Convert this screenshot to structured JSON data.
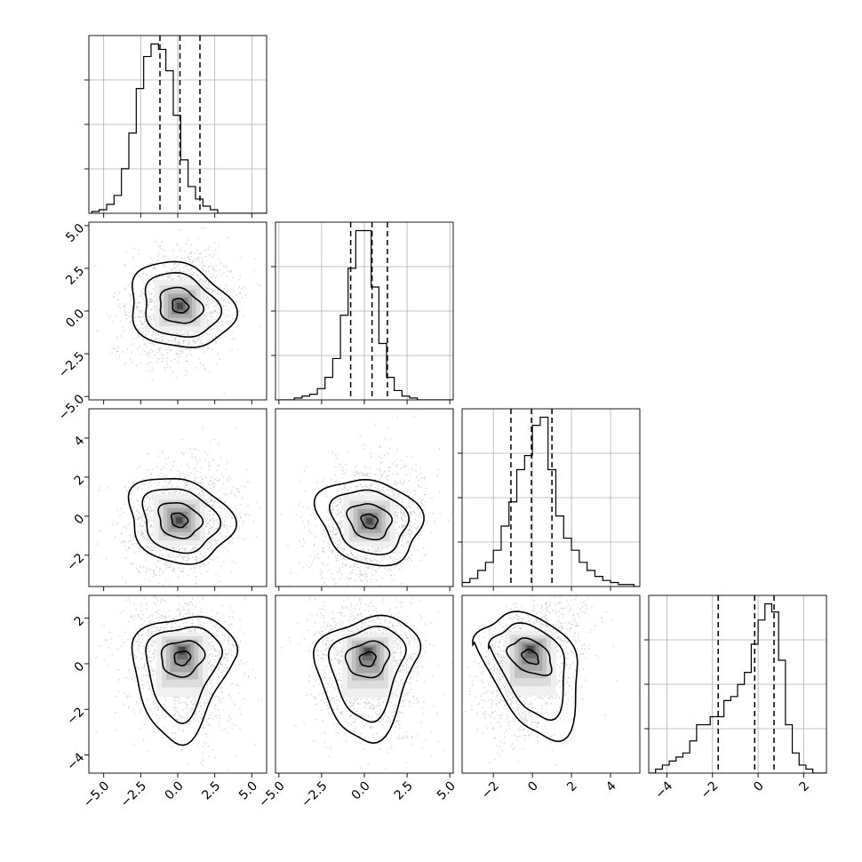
{
  "chart_data": {
    "type": "corner",
    "parameters": [
      {
        "range": [
          -6,
          6
        ],
        "ticks": [
          -5.0,
          -2.5,
          0.0,
          2.5,
          5.0
        ],
        "tick_labels": [
          "−5.0",
          "−2.5",
          "0.0",
          "2.5",
          "5.0"
        ]
      },
      {
        "range": [
          -5.2,
          5.2
        ],
        "ticks": [
          -5.0,
          -2.5,
          0.0,
          2.5,
          5.0
        ],
        "tick_labels": [
          "−5.0",
          "−2.5",
          "0.0",
          "2.5",
          "5.0"
        ]
      },
      {
        "range": [
          -3.6,
          5.5
        ],
        "ticks": [
          -2,
          0,
          2,
          4
        ],
        "tick_labels": [
          "−2",
          "0",
          "2",
          "4"
        ]
      },
      {
        "range": [
          -4.8,
          3.0
        ],
        "ticks": [
          -4,
          -2,
          0,
          2
        ],
        "tick_labels": [
          "−4",
          "−2",
          "0",
          "2"
        ]
      }
    ],
    "histograms": [
      {
        "edges_start": -5.8,
        "bin_width": 0.5,
        "counts": [
          1,
          2,
          5,
          10,
          25,
          45,
          70,
          88,
          95,
          92,
          80,
          55,
          30,
          15,
          8,
          4,
          2,
          0,
          0,
          0,
          0,
          0,
          0,
          0
        ],
        "quantiles": [
          -1.2,
          0.15,
          1.5
        ]
      },
      {
        "edges_start": -5.0,
        "bin_width": 0.45,
        "counts": [
          0,
          0,
          1,
          2,
          3,
          6,
          12,
          22,
          45,
          70,
          90,
          90,
          60,
          30,
          12,
          5,
          2,
          1,
          0,
          0,
          0,
          0,
          0
        ],
        "quantiles": [
          -0.8,
          0.45,
          1.35
        ]
      },
      {
        "edges_start": -3.6,
        "bin_width": 0.4,
        "counts": [
          2,
          4,
          8,
          12,
          18,
          30,
          42,
          58,
          65,
          80,
          84,
          58,
          35,
          24,
          18,
          12,
          8,
          5,
          3,
          2,
          1,
          1,
          0
        ],
        "quantiles": [
          -1.1,
          -0.05,
          1.0
        ]
      },
      {
        "edges_start": -4.8,
        "bin_width": 0.3,
        "counts": [
          0,
          1,
          2,
          3,
          4,
          5,
          8,
          12,
          12,
          14,
          14,
          18,
          19,
          22,
          25,
          32,
          38,
          42,
          40,
          28,
          12,
          5,
          2,
          1,
          0,
          0
        ],
        "quantiles": [
          -1.75,
          -0.15,
          0.7
        ]
      }
    ],
    "joint_centers": [
      {
        "row": 1,
        "col": 0,
        "center": [
          0.15,
          0.3
        ]
      },
      {
        "row": 2,
        "col": 0,
        "center": [
          0.1,
          -0.2
        ]
      },
      {
        "row": 2,
        "col": 1,
        "center": [
          0.3,
          -0.25
        ]
      },
      {
        "row": 3,
        "col": 0,
        "center": [
          0.3,
          0.25
        ]
      },
      {
        "row": 3,
        "col": 1,
        "center": [
          0.2,
          0.2
        ]
      },
      {
        "row": 3,
        "col": 2,
        "center": [
          -0.1,
          0.3
        ]
      }
    ]
  }
}
